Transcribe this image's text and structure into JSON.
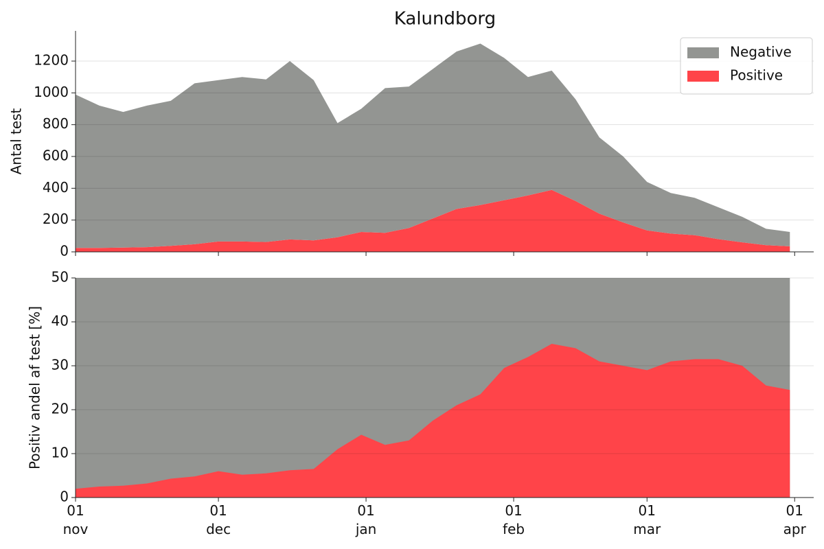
{
  "chart_data": [
    {
      "type": "area",
      "title": "Kalundborg",
      "ylabel": "Antal test",
      "x": [
        0,
        5,
        10,
        15,
        20,
        25,
        30,
        35,
        40,
        45,
        50,
        55,
        60,
        65,
        70,
        75,
        80,
        85,
        90,
        95,
        100,
        105,
        110,
        115,
        120,
        125,
        130,
        135,
        140,
        145,
        150
      ],
      "xlim": [
        0,
        155
      ],
      "xticks": [
        {
          "value": 0,
          "label": "01 nov"
        },
        {
          "value": 30,
          "label": "01 dec"
        },
        {
          "value": 61,
          "label": "01 jan"
        },
        {
          "value": 92,
          "label": "01 feb"
        },
        {
          "value": 120,
          "label": "01 mar"
        },
        {
          "value": 151,
          "label": "01 apr"
        }
      ],
      "ylim": [
        0,
        1390
      ],
      "yticks": [
        0,
        200,
        400,
        600,
        800,
        1000,
        1200
      ],
      "grid": true,
      "stacked": true,
      "legend": "upper right",
      "series": [
        {
          "name": "Positive",
          "color": "#ff4449",
          "values": [
            25,
            25,
            27,
            30,
            38,
            48,
            65,
            65,
            62,
            78,
            72,
            92,
            125,
            120,
            150,
            210,
            270,
            295,
            325,
            355,
            390,
            320,
            240,
            185,
            135,
            115,
            105,
            80,
            60,
            42,
            35
          ]
        },
        {
          "name": "Negative",
          "color": "#939592",
          "values": [
            965,
            895,
            853,
            890,
            912,
            1012,
            1015,
            1035,
            1023,
            1122,
            1008,
            718,
            775,
            910,
            890,
            940,
            990,
            1015,
            895,
            745,
            750,
            640,
            480,
            415,
            305,
            255,
            235,
            200,
            160,
            103,
            90
          ]
        }
      ]
    },
    {
      "type": "area",
      "ylabel": "Positiv andel af test [%]",
      "x": [
        0,
        5,
        10,
        15,
        20,
        25,
        30,
        35,
        40,
        45,
        50,
        55,
        60,
        65,
        70,
        75,
        80,
        85,
        90,
        95,
        100,
        105,
        110,
        115,
        120,
        125,
        130,
        135,
        140,
        145,
        150
      ],
      "xlim": [
        0,
        155
      ],
      "xticks": [
        {
          "value": 0,
          "label": "01 nov"
        },
        {
          "value": 30,
          "label": "01 dec"
        },
        {
          "value": 61,
          "label": "01 jan"
        },
        {
          "value": 92,
          "label": "01 feb"
        },
        {
          "value": 120,
          "label": "01 mar"
        },
        {
          "value": 151,
          "label": "01 apr"
        }
      ],
      "ylim": [
        0,
        50
      ],
      "yticks": [
        0,
        10,
        20,
        30,
        40,
        50
      ],
      "grid": true,
      "facecolor": "#939592",
      "color": "#ff4449",
      "values": [
        2,
        2.5,
        2.7,
        3.2,
        4.3,
        4.8,
        6,
        5.2,
        5.5,
        6.2,
        6.5,
        11,
        14.3,
        12,
        13,
        17.5,
        21,
        23.5,
        29.5,
        32,
        35,
        34,
        31,
        30,
        29,
        31,
        31.5,
        31.5,
        30,
        25.5,
        24.5
      ]
    }
  ]
}
